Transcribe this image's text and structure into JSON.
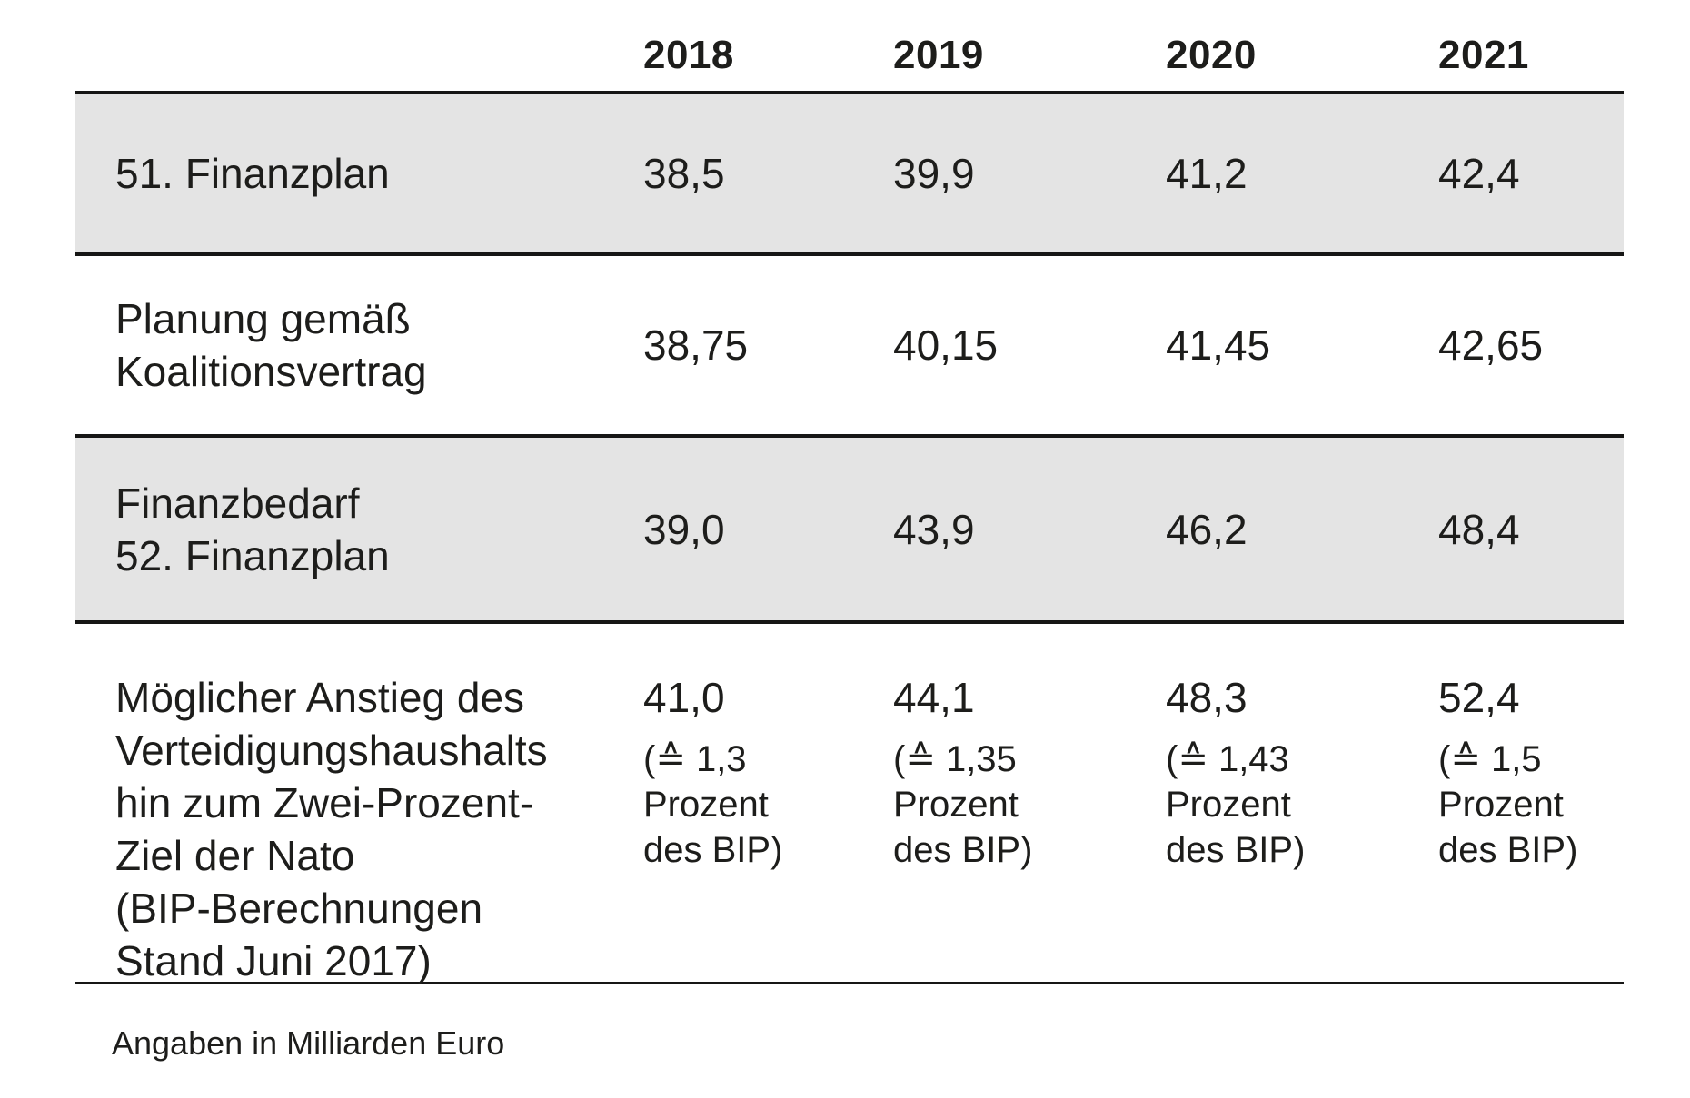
{
  "table": {
    "columns": [
      "2018",
      "2019",
      "2020",
      "2021"
    ],
    "rows": [
      {
        "label": "51. Finanzplan",
        "values": [
          "38,5",
          "39,9",
          "41,2",
          "42,4"
        ]
      },
      {
        "label": "Planung gemäß\nKoalitionsvertrag",
        "values": [
          "38,75",
          "40,15",
          "41,45",
          "42,65"
        ]
      },
      {
        "label": "Finanzbedarf\n52. Finanzplan",
        "values": [
          "39,0",
          "43,9",
          "46,2",
          "48,4"
        ]
      },
      {
        "label": "Möglicher Anstieg des\nVerteidigungshaushalts\nhin zum Zwei-Prozent-\nZiel der Nato\n(BIP-Berechnungen\nStand Juni 2017)",
        "values": [
          "41,0",
          "44,1",
          "48,3",
          "52,4"
        ],
        "gdp_notes": [
          "(≙ 1,3\nProzent\ndes BIP)",
          "(≙ 1,35\nProzent\ndes BIP)",
          "(≙ 1,43\nProzent\ndes BIP)",
          "(≙ 1,5\nProzent\ndes BIP)"
        ]
      }
    ],
    "unit_note": "Angaben in Milliarden Euro"
  },
  "colors": {
    "shaded_row": "#e4e4e4",
    "rule": "#161615",
    "text": "#1d1d1b",
    "background": "#ffffff"
  },
  "chart_data": {
    "type": "table",
    "title": "",
    "columns": [
      "2018",
      "2019",
      "2020",
      "2021"
    ],
    "unit": "Milliarden Euro",
    "rows": [
      {
        "label": "51. Finanzplan",
        "values": [
          38.5,
          39.9,
          41.2,
          42.4
        ]
      },
      {
        "label": "Planung gemäß Koalitionsvertrag",
        "values": [
          38.75,
          40.15,
          41.45,
          42.65
        ]
      },
      {
        "label": "Finanzbedarf 52. Finanzplan",
        "values": [
          39.0,
          43.9,
          46.2,
          48.4
        ]
      },
      {
        "label": "Möglicher Anstieg des Verteidigungshaushalts hin zum Zwei-Prozent-Ziel der Nato (BIP-Berechnungen Stand Juni 2017)",
        "values": [
          41.0,
          44.1,
          48.3,
          52.4
        ],
        "share_of_gdp_percent": [
          1.3,
          1.35,
          1.43,
          1.5
        ]
      }
    ]
  }
}
